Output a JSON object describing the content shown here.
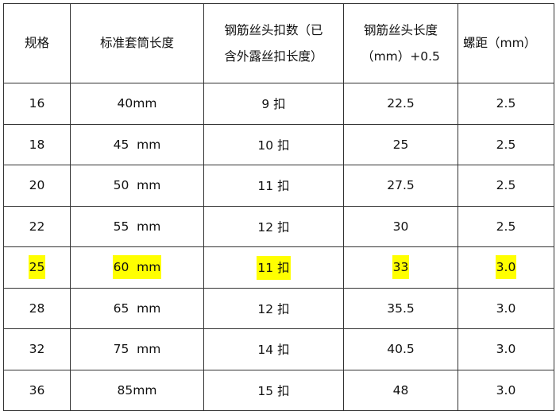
{
  "table": {
    "headers": [
      [
        "规格"
      ],
      [
        "标准套筒长度"
      ],
      [
        "钢筋丝头扣数（已",
        "含外露丝扣长度）"
      ],
      [
        "钢筋丝头长度",
        "（mm）+0.5"
      ],
      [
        "螺距（mm）"
      ]
    ],
    "rows": [
      {
        "cells": [
          "16",
          "40mm",
          "9 扣",
          "22.5",
          "2.5"
        ],
        "highlighted": false
      },
      {
        "cells": [
          "18",
          "45  mm",
          "10 扣",
          "25",
          "2.5"
        ],
        "highlighted": false
      },
      {
        "cells": [
          "20",
          "50  mm",
          "11 扣",
          "27.5",
          "2.5"
        ],
        "highlighted": false
      },
      {
        "cells": [
          "22",
          "55  mm",
          "12 扣",
          "30",
          "2.5"
        ],
        "highlighted": false
      },
      {
        "cells": [
          "25",
          "60  mm",
          "11 扣",
          "33",
          "3.0"
        ],
        "highlighted": true
      },
      {
        "cells": [
          "28",
          "65  mm",
          "12 扣",
          "35.5",
          "3.0"
        ],
        "highlighted": false
      },
      {
        "cells": [
          "32",
          "75  mm",
          "14 扣",
          "40.5",
          "3.0"
        ],
        "highlighted": false
      },
      {
        "cells": [
          "36",
          "85mm",
          "15 扣",
          "48",
          "3.0"
        ],
        "highlighted": false
      }
    ],
    "highlight_color": "#ffff00"
  }
}
